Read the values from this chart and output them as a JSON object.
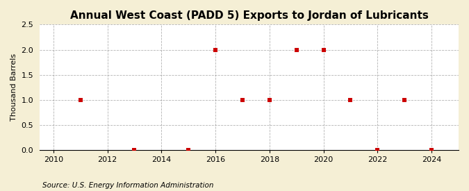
{
  "title": "Annual West Coast (PADD 5) Exports to Jordan of Lubricants",
  "ylabel": "Thousand Barrels",
  "source": "Source: U.S. Energy Information Administration",
  "background_color": "#f5efd5",
  "plot_bg_color": "#ffffff",
  "x_data": [
    2011,
    2013,
    2015,
    2016,
    2017,
    2018,
    2019,
    2020,
    2021,
    2022,
    2023,
    2024
  ],
  "y_data": [
    1.0,
    0.0,
    0.0,
    2.0,
    1.0,
    1.0,
    2.0,
    2.0,
    1.0,
    0.0,
    1.0,
    0.0
  ],
  "marker_color": "#cc0000",
  "marker_size": 4,
  "xlim": [
    2009.5,
    2025.0
  ],
  "ylim": [
    0.0,
    2.5
  ],
  "yticks": [
    0.0,
    0.5,
    1.0,
    1.5,
    2.0,
    2.5
  ],
  "xticks": [
    2010,
    2012,
    2014,
    2016,
    2018,
    2020,
    2022,
    2024
  ],
  "title_fontsize": 11,
  "label_fontsize": 8,
  "tick_fontsize": 8,
  "source_fontsize": 7.5
}
